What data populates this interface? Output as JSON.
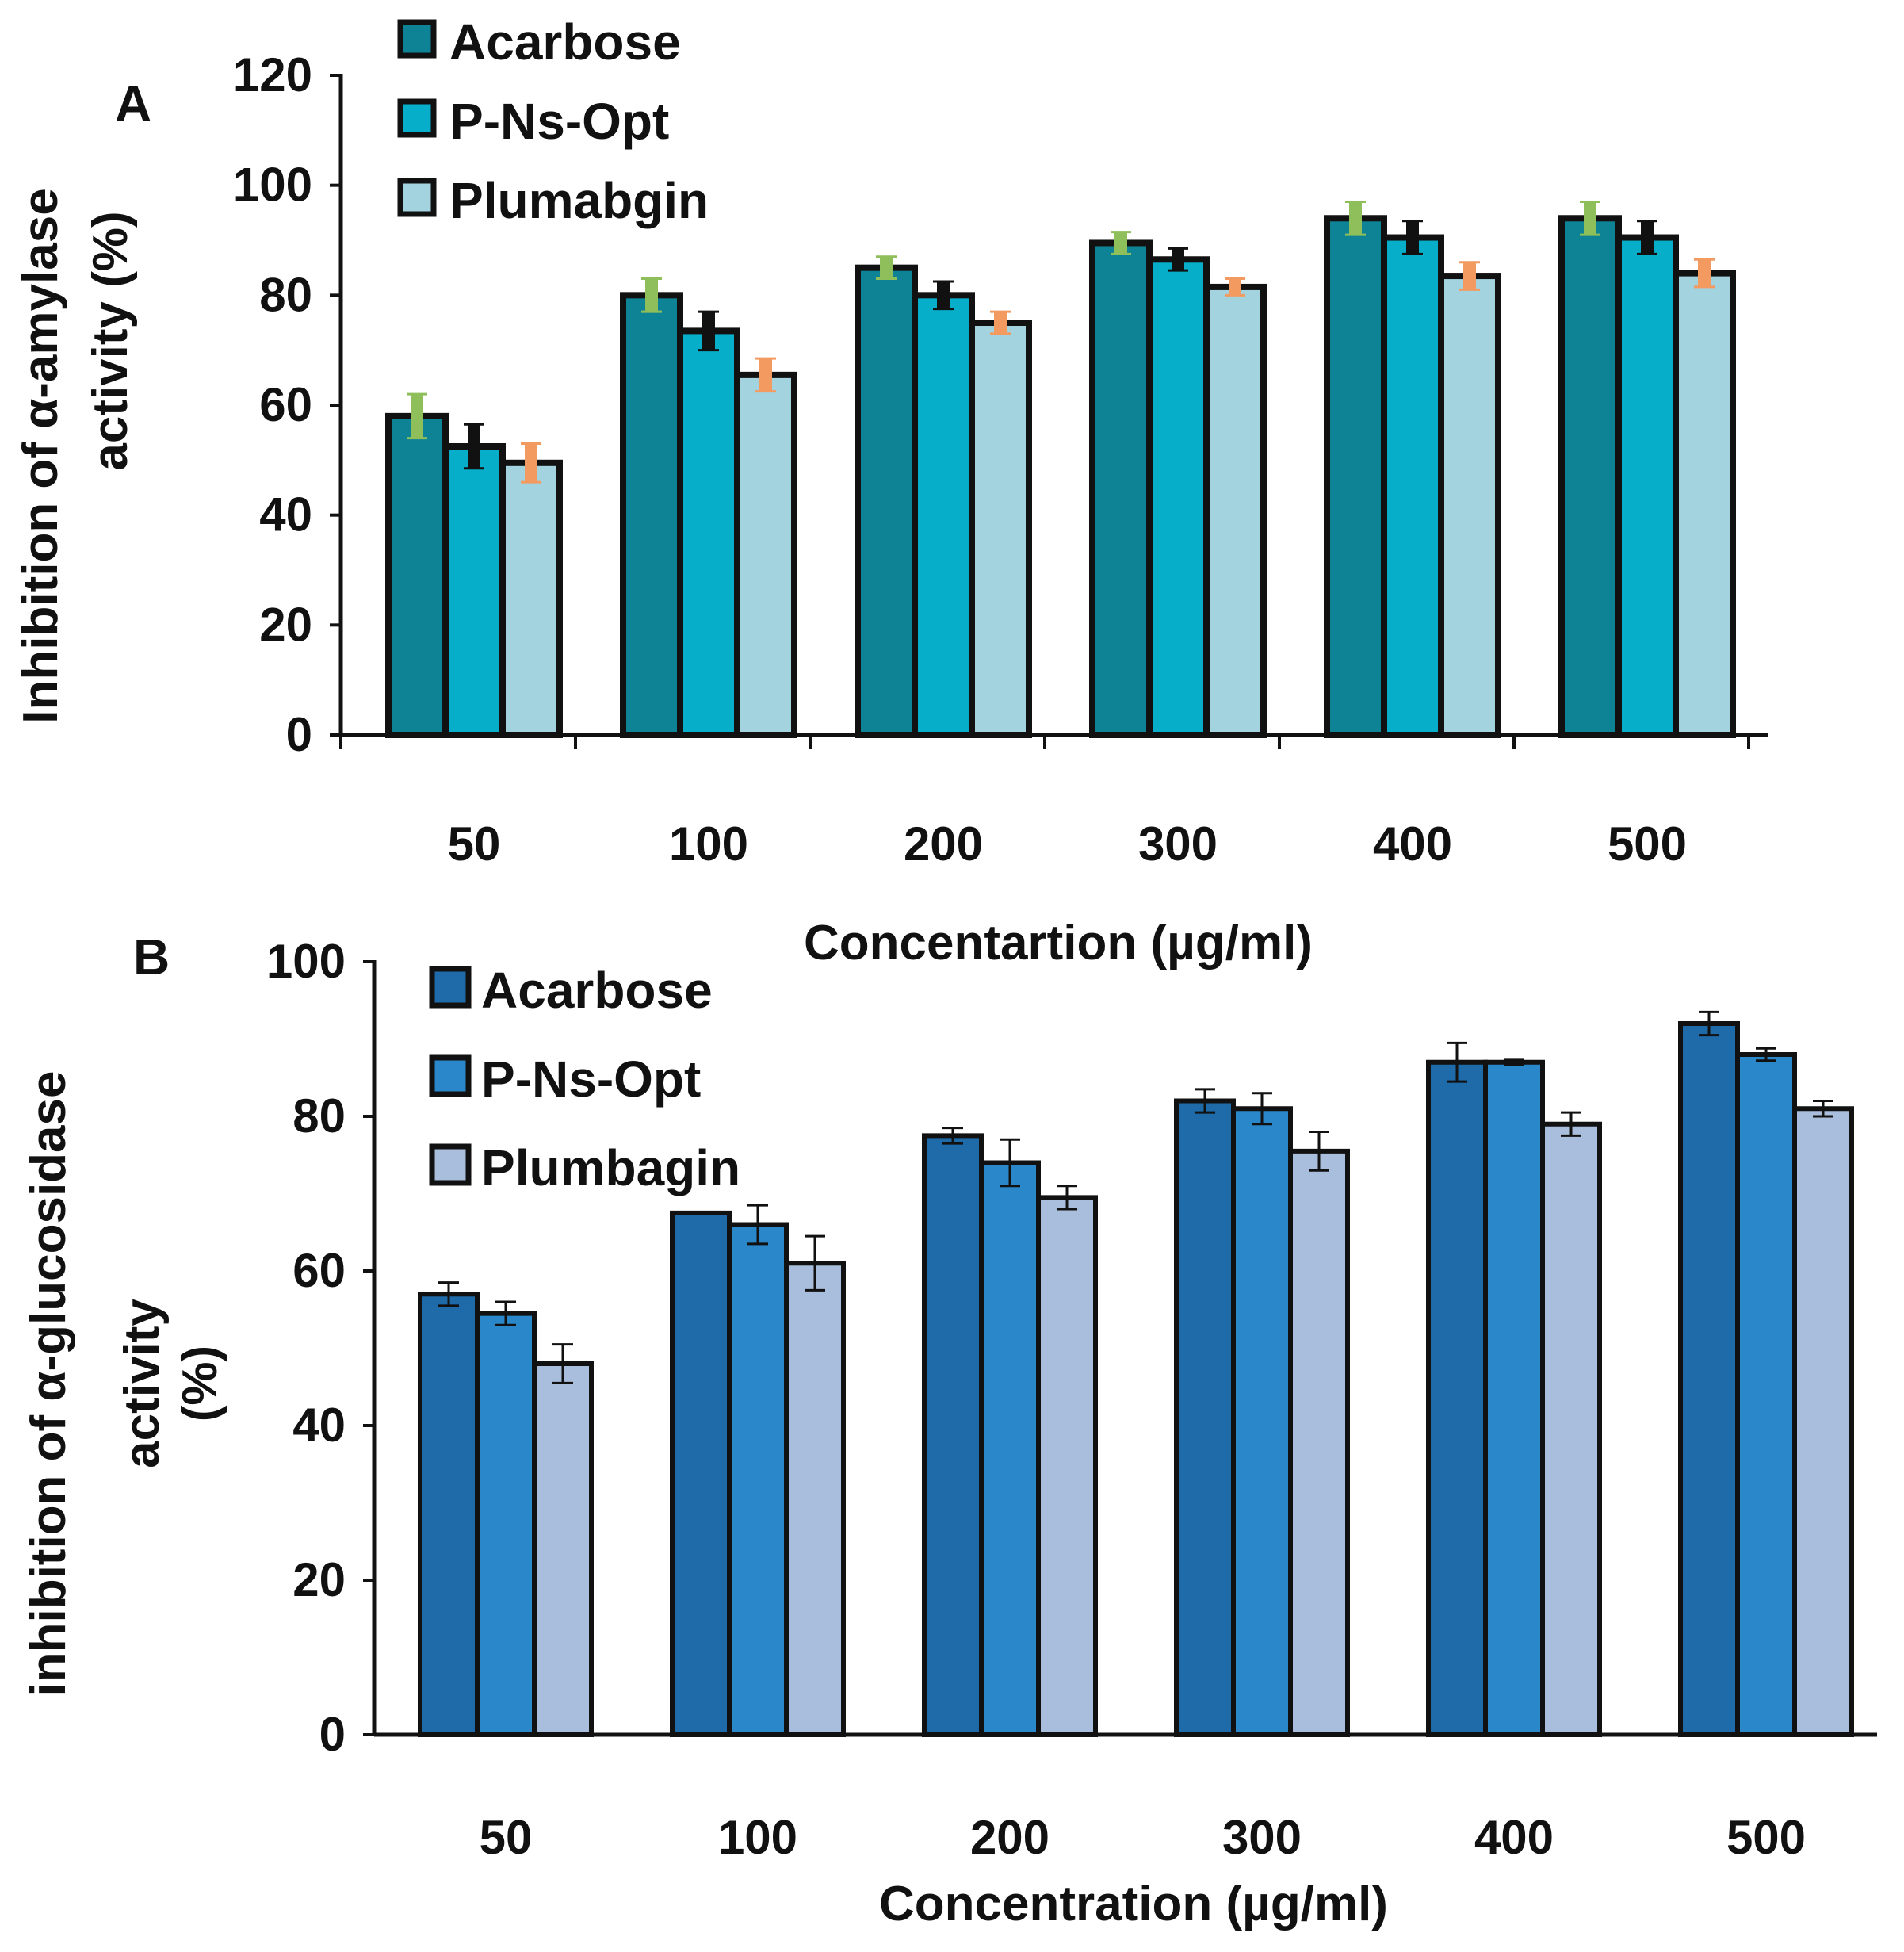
{
  "chart_data": [
    {
      "type": "bar",
      "panel": "A",
      "categories": [
        "50",
        "100",
        "200",
        "300",
        "400",
        "500"
      ],
      "series": [
        {
          "name": "Acarbose",
          "color": "#0f8396",
          "error_color": "#8fbf5a",
          "values": [
            58,
            80,
            85,
            89.5,
            94,
            94
          ],
          "errors": [
            4,
            3,
            2,
            2,
            3,
            3
          ]
        },
        {
          "name": "P-Ns-Opt",
          "color": "#06aec9",
          "error_color": "#111111",
          "values": [
            52.5,
            73.5,
            80,
            86.5,
            90.5,
            90.5
          ],
          "errors": [
            4,
            3.5,
            2.5,
            2,
            3,
            3
          ]
        },
        {
          "name": "Plumabgin",
          "color": "#a4d3e0",
          "error_color": "#f29a60",
          "values": [
            49.5,
            65.5,
            75,
            81.5,
            83.5,
            84
          ],
          "errors": [
            3.5,
            3,
            2,
            1.5,
            2.5,
            2.5
          ]
        }
      ],
      "title": "",
      "xlabel": "Concentartion (µg/ml)",
      "ylabel": [
        "Inhibition of α-amylase",
        "activity (%)"
      ],
      "ylim": [
        0,
        120
      ],
      "yticks": [
        "0",
        "20",
        "40",
        "60",
        "80",
        "100",
        "120"
      ],
      "panel_label": "A",
      "legend_position": "top-left",
      "grid": false
    },
    {
      "type": "bar",
      "panel": "B",
      "categories": [
        "50",
        "100",
        "200",
        "300",
        "400",
        "500"
      ],
      "series": [
        {
          "name": "Acarbose",
          "color": "#1f6aa8",
          "error_color": "#111111",
          "values": [
            57,
            67.5,
            77.5,
            82,
            87,
            92
          ],
          "errors": [
            1.5,
            0,
            1,
            1.5,
            2.5,
            1.5
          ]
        },
        {
          "name": "P-Ns-Opt",
          "color": "#2a87c9",
          "error_color": "#111111",
          "values": [
            54.5,
            66,
            74,
            81,
            87,
            88
          ],
          "errors": [
            1.5,
            2.5,
            3,
            2,
            0.3,
            0.8
          ]
        },
        {
          "name": "Plumbagin",
          "color": "#a9bddc",
          "error_color": "#111111",
          "values": [
            48,
            61,
            69.5,
            75.5,
            79,
            81
          ],
          "errors": [
            2.5,
            3.5,
            1.5,
            2.5,
            1.5,
            1
          ]
        }
      ],
      "title": "",
      "xlabel": "Concentration (µg/ml)",
      "ylabel": [
        "inhibition of α-glucosidase",
        "activity",
        "(%)"
      ],
      "ylim": [
        0,
        100
      ],
      "yticks": [
        "0",
        "20",
        "40",
        "60",
        "80",
        "100"
      ],
      "panel_label": "B",
      "legend_position": "top-left",
      "grid": false
    }
  ]
}
